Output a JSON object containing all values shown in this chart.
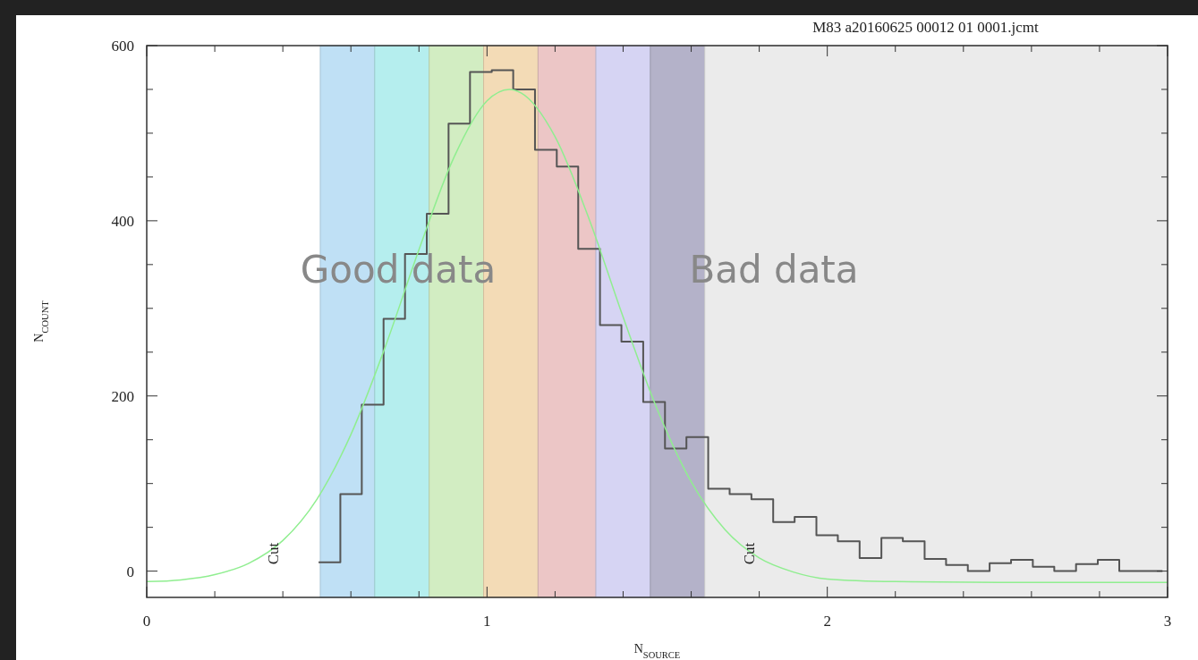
{
  "chart_data": {
    "type": "histogram",
    "title": "M83 a20160625 00012 01 0001.jcmt",
    "xlabel": "N$_{SOURCE}$",
    "ylabel": "N$_{COUNT}$",
    "xlim": [
      0,
      3
    ],
    "ylim": [
      -30,
      600
    ],
    "xticks": [
      0,
      {
        "value": 0.2,
        "label": null
      },
      {
        "value": 0.4,
        "label": null
      },
      {
        "value": 0.6,
        "label": null
      },
      {
        "value": 0.8,
        "label": null
      },
      1,
      {
        "value": 1.2,
        "label": null
      },
      {
        "value": 1.4,
        "label": null
      },
      {
        "value": 1.6,
        "label": null
      },
      {
        "value": 1.8,
        "label": null
      },
      2,
      {
        "value": 2.2,
        "label": null
      },
      {
        "value": 2.4,
        "label": null
      },
      {
        "value": 2.6,
        "label": null
      },
      {
        "value": 2.8,
        "label": null
      },
      3
    ],
    "yticks": [
      0,
      {
        "value": 50,
        "label": null
      },
      {
        "value": 100,
        "label": null
      },
      {
        "value": 150,
        "label": null
      },
      200,
      {
        "value": 250,
        "label": null
      },
      {
        "value": 300,
        "label": null
      },
      {
        "value": 350,
        "label": null
      },
      400,
      {
        "value": 450,
        "label": null
      },
      {
        "value": 500,
        "label": null
      },
      {
        "value": 550,
        "label": null
      },
      600
    ],
    "grid": false,
    "bands": [
      {
        "axis": "x",
        "from": 0.51,
        "to": 0.67,
        "color": "#bfe0f5"
      },
      {
        "axis": "x",
        "from": 0.67,
        "to": 0.83,
        "color": "#b5eeee"
      },
      {
        "axis": "x",
        "from": 0.83,
        "to": 0.99,
        "color": "#d2edc2"
      },
      {
        "axis": "x",
        "from": 0.99,
        "to": 1.15,
        "color": "#f3dbb6"
      },
      {
        "axis": "x",
        "from": 1.15,
        "to": 1.32,
        "color": "#ecc6c6"
      },
      {
        "axis": "x",
        "from": 1.32,
        "to": 1.48,
        "color": "#d6d4f3"
      },
      {
        "axis": "x",
        "from": 1.48,
        "to": 1.64,
        "color": "#b4b2c9"
      },
      {
        "axis": "x",
        "from": 1.64,
        "to": 3,
        "color": "#ebebeb"
      }
    ],
    "series": [
      {
        "color": "#555555",
        "bins": [
          0.505,
          0.569,
          0.632,
          0.696,
          0.759,
          0.823,
          0.887,
          0.95,
          1.014,
          1.077,
          1.141,
          1.205,
          1.268,
          1.332,
          1.395,
          1.459,
          1.523,
          1.586,
          1.65,
          1.713,
          1.777,
          1.841,
          1.904,
          1.968,
          2.031,
          2.095,
          2.159,
          2.222,
          2.286,
          2.349,
          2.413,
          2.477,
          2.54,
          2.604,
          2.667,
          2.731,
          2.795,
          2.858,
          2.922,
          2.985
        ],
        "values": [
          10,
          88,
          190,
          288,
          362,
          408,
          511,
          570,
          572,
          550,
          481,
          462,
          368,
          281,
          262,
          193,
          140,
          153,
          94,
          88,
          82,
          56,
          62,
          41,
          34,
          15,
          38,
          34,
          14,
          7,
          0,
          9,
          13,
          5,
          0,
          8,
          13,
          0,
          0
        ]
      },
      {
        "type": "line",
        "color": "#90ee90",
        "x": [
          0,
          0.1,
          0.2,
          0.3,
          0.4,
          0.5,
          0.6,
          0.7,
          0.8,
          0.9,
          1.0,
          1.066,
          1.1,
          1.2,
          1.3,
          1.4,
          1.5,
          1.6,
          1.7,
          1.8,
          1.9,
          2.0,
          2.2,
          2.5,
          3.0
        ],
        "values": [
          -12,
          -10,
          -4,
          9,
          35,
          82,
          156,
          255,
          367,
          470,
          537,
          550,
          546,
          496,
          402,
          290,
          185,
          102,
          47,
          15,
          -1,
          -9,
          -12,
          -13,
          -13
        ]
      }
    ],
    "annotations": [
      {
        "text": "Cut",
        "x": 0.37,
        "y": 20
      },
      {
        "text": "Cut",
        "x": 1.77,
        "y": 20
      },
      "Good data",
      "Bad data"
    ]
  }
}
